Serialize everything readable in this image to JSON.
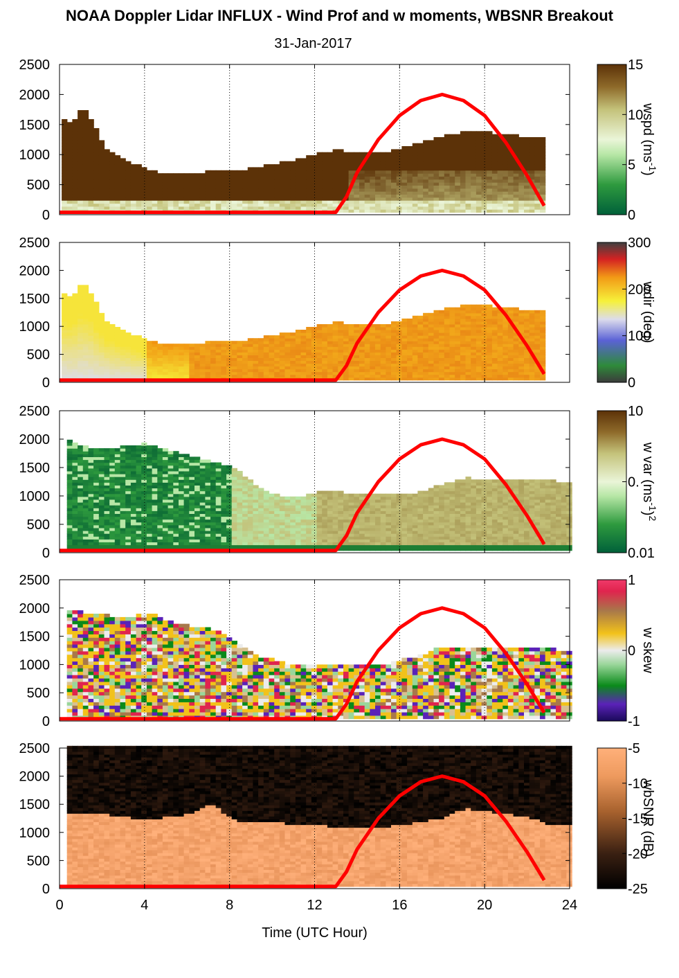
{
  "title": "NOAA Doppler Lidar INFLUX - Wind Prof and w moments, WBSNR Breakout",
  "subtitle": "31-Jan-2017",
  "chart_data": [
    {
      "type": "heatmap",
      "variable": "wspd",
      "colorbar_label": "wspd (ms",
      "colorbar_label_sup": "-1",
      "colorbar_label_close": ")",
      "colorbar_ticks": [
        "15",
        "10",
        "5",
        "0"
      ],
      "clim": [
        0,
        15
      ],
      "xlim": [
        0,
        24
      ],
      "ylim": [
        0,
        2500
      ],
      "y_ticks": [
        "2500",
        "2000",
        "1500",
        "1000",
        "500",
        "0"
      ],
      "x_ticks": [],
      "data_top_profile": {
        "x": [
          0,
          0.5,
          1,
          1.5,
          2,
          3,
          4,
          5,
          6,
          7,
          8,
          9,
          10,
          11,
          12,
          13,
          14,
          15,
          16,
          17,
          18,
          19,
          20,
          21,
          22,
          22.8
        ],
        "y": [
          1600,
          1500,
          1800,
          1500,
          1100,
          900,
          720,
          640,
          650,
          700,
          700,
          750,
          820,
          900,
          1000,
          1050,
          1000,
          1000,
          1100,
          1200,
          1300,
          1350,
          1350,
          1300,
          1280,
          1250
        ]
      }
    },
    {
      "type": "heatmap",
      "variable": "wdir",
      "colorbar_label": "wdir (deg)",
      "colorbar_ticks": [
        "300",
        "200",
        "100",
        "0"
      ],
      "clim": [
        0,
        360
      ],
      "xlim": [
        0,
        24
      ],
      "ylim": [
        0,
        2500
      ],
      "y_ticks": [
        "2500",
        "2000",
        "1500",
        "1000",
        "500",
        "0"
      ],
      "x_ticks": []
    },
    {
      "type": "heatmap",
      "variable": "w var",
      "colorbar_label": "w var (ms",
      "colorbar_label_sup": "-1",
      "colorbar_label_close": ")",
      "colorbar_label_exp": "2",
      "colorbar_ticks": [
        "10",
        "0.",
        "0.01"
      ],
      "clim": [
        0.01,
        10
      ],
      "log_color_scale": true,
      "xlim": [
        0,
        24
      ],
      "ylim": [
        0,
        2500
      ],
      "y_ticks": [
        "2500",
        "2000",
        "1500",
        "1000",
        "500",
        "0"
      ],
      "x_ticks": []
    },
    {
      "type": "heatmap",
      "variable": "w skew",
      "colorbar_label": "w skew",
      "colorbar_ticks": [
        "1",
        "0",
        "-1"
      ],
      "clim": [
        -1,
        1
      ],
      "xlim": [
        0,
        24
      ],
      "ylim": [
        0,
        2500
      ],
      "y_ticks": [
        "2500",
        "2000",
        "1500",
        "1000",
        "500",
        "0"
      ],
      "x_ticks": []
    },
    {
      "type": "heatmap",
      "variable": "wbSNR",
      "colorbar_label": "wbSNR (dB)",
      "colorbar_ticks": [
        "-5",
        "-10",
        "-15",
        "-20",
        "-25"
      ],
      "clim": [
        -25,
        -5
      ],
      "xlim": [
        0,
        24
      ],
      "ylim": [
        0,
        2500
      ],
      "y_ticks": [
        "2500",
        "2000",
        "1500",
        "1000",
        "500",
        "0"
      ],
      "x_ticks": [
        "0",
        "4",
        "8",
        "12",
        "16",
        "20",
        "24"
      ],
      "xlabel": "Time (UTC Hour)"
    }
  ],
  "overlay_curve": {
    "color": "#ff0000",
    "description_values": {
      "x": [
        0,
        13,
        13.5,
        14,
        15,
        16,
        17,
        18,
        19,
        20,
        21,
        22,
        22.8
      ],
      "y": [
        40,
        40,
        300,
        700,
        1250,
        1650,
        1900,
        2000,
        1900,
        1650,
        1200,
        650,
        150
      ]
    }
  },
  "vertical_gridlines_x": [
    4,
    8,
    12,
    16,
    20,
    24
  ]
}
